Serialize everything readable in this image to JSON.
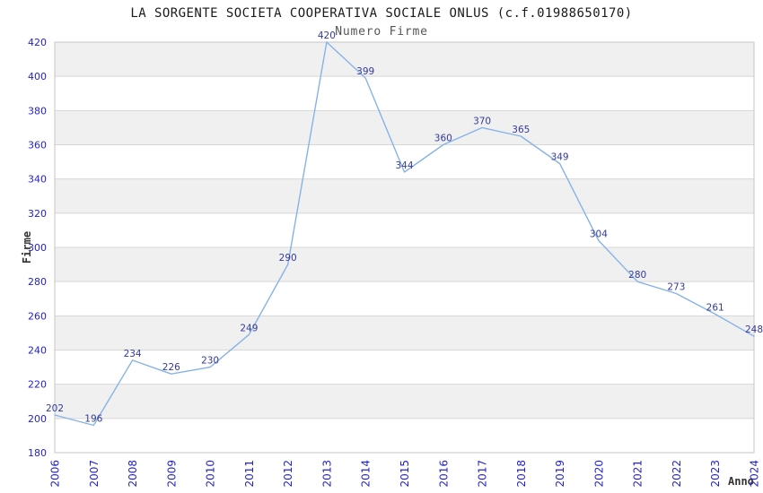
{
  "title": "LA SORGENTE SOCIETA COOPERATIVA SOCIALE ONLUS (c.f.01988650170)",
  "chart_data": {
    "type": "line",
    "legend": "Numero Firme",
    "legend_position": "top-center",
    "xlabel": "Anno",
    "ylabel": "Firme",
    "categories": [
      "2006",
      "2007",
      "2008",
      "2009",
      "2010",
      "2011",
      "2012",
      "2013",
      "2014",
      "2015",
      "2016",
      "2017",
      "2018",
      "2019",
      "2020",
      "2021",
      "2022",
      "2023",
      "2024"
    ],
    "series": [
      {
        "name": "Numero Firme",
        "values": [
          202,
          196,
          234,
          226,
          230,
          249,
          290,
          420,
          399,
          344,
          360,
          370,
          365,
          349,
          304,
          280,
          273,
          261,
          248
        ]
      }
    ],
    "ylim": [
      180,
      420
    ],
    "yticks": [
      180,
      200,
      220,
      240,
      260,
      280,
      300,
      320,
      340,
      360,
      380,
      400,
      420
    ],
    "grid": "alternating-horizontal-bands",
    "point_labels_visible": true,
    "markers": "none",
    "colors": {
      "line": "#86b3e6",
      "axis_tick_labels": "#2323cc",
      "point_labels": "#333a99",
      "band_fill": "#f0f0f0",
      "band_fill_alt": "#ffffff",
      "grid_line": "#d7d7d7",
      "plot_border": "#c6c6c6",
      "title_text": "#1a1a1a",
      "legend_text": "#555555",
      "axis_label_text": "#333333",
      "background": "#ffffff"
    }
  }
}
